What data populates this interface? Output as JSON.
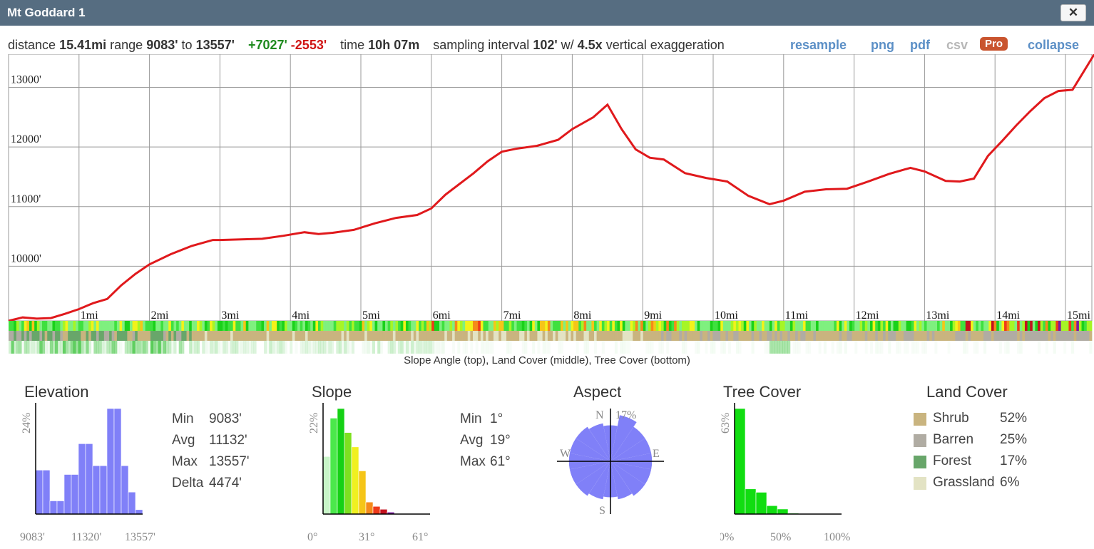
{
  "window": {
    "title": "Mt Goddard 1",
    "close_glyph": "✕"
  },
  "stats": {
    "distance_label": "distance",
    "distance": "15.41mi",
    "range_label": "range",
    "range_min": "9083'",
    "range_to": "to",
    "range_max": "13557'",
    "gain": "+7027'",
    "loss": "-2553'",
    "time_label": "time",
    "time": "10h 07m",
    "sampling_label": "sampling interval",
    "sampling": "102'",
    "w_label": "w/",
    "exaggeration": "4.5x",
    "exaggeration_label": "vertical exaggeration"
  },
  "actions": {
    "resample": "resample",
    "png": "png",
    "pdf": "pdf",
    "csv": "csv",
    "pro": "Pro",
    "collapse": "collapse"
  },
  "profile": {
    "caption": "Slope Angle (top), Land Cover (middle), Tree Cover (bottom)",
    "elevation_labels": [
      "13000'",
      "12000'",
      "11000'",
      "10000'"
    ],
    "mile_labels": [
      "1mi",
      "2mi",
      "3mi",
      "4mi",
      "5mi",
      "6mi",
      "7mi",
      "8mi",
      "9mi",
      "10mi",
      "11mi",
      "12mi",
      "13mi",
      "14mi",
      "15mi"
    ]
  },
  "elevation": {
    "title": "Elevation",
    "ymax_label": "24%",
    "xticks": [
      "9083'",
      "11320'",
      "13557'"
    ],
    "min_label": "Min",
    "min": "9083'",
    "avg_label": "Avg",
    "avg": "11132'",
    "max_label": "Max",
    "max": "13557'",
    "delta_label": "Delta",
    "delta": "4474'"
  },
  "slope": {
    "title": "Slope",
    "ymax_label": "22%",
    "xticks": [
      "0°",
      "31°",
      "61°"
    ],
    "min_label": "Min",
    "min": "1°",
    "avg_label": "Avg",
    "avg": "19°",
    "max_label": "Max",
    "max": "61°"
  },
  "aspect": {
    "title": "Aspect",
    "n": "N",
    "s": "S",
    "e": "E",
    "w": "W",
    "max_label": "17%"
  },
  "tree_cover": {
    "title": "Tree Cover",
    "ymax_label": "63%",
    "xticks": [
      "0%",
      "50%",
      "100%"
    ]
  },
  "land_cover": {
    "title": "Land Cover",
    "items": [
      {
        "label": "Shrub",
        "value": "52%",
        "color": "#c9b47f"
      },
      {
        "label": "Barren",
        "value": "25%",
        "color": "#b0aca3"
      },
      {
        "label": "Forest",
        "value": "17%",
        "color": "#68a66a"
      },
      {
        "label": "Grassland",
        "value": "6%",
        "color": "#e3e3c4"
      }
    ]
  },
  "colors": {
    "profile_line": "#e0191c",
    "elevation_bars": "#8080f8",
    "aspect_fill": "#8080f8",
    "tree_bars": "#11dd11"
  },
  "chart_data": [
    {
      "type": "line",
      "title": "",
      "xlabel": "",
      "ylabel": "",
      "x_unit": "mi",
      "y_unit": "ft",
      "xlim": [
        0,
        15.41
      ],
      "ylim": [
        9083,
        13557
      ],
      "x": [
        0,
        0.2,
        0.4,
        0.6,
        0.8,
        1.0,
        1.2,
        1.4,
        1.6,
        1.8,
        2.0,
        2.3,
        2.6,
        2.9,
        3.0,
        3.3,
        3.6,
        3.9,
        4.2,
        4.4,
        4.6,
        4.9,
        5.2,
        5.5,
        5.8,
        6.0,
        6.2,
        6.4,
        6.6,
        6.8,
        7.0,
        7.2,
        7.5,
        7.8,
        8.0,
        8.3,
        8.5,
        8.7,
        8.9,
        9.1,
        9.3,
        9.6,
        9.9,
        10.2,
        10.5,
        10.8,
        11.0,
        11.3,
        11.6,
        11.9,
        12.2,
        12.5,
        12.8,
        13.0,
        13.3,
        13.5,
        13.7,
        13.9,
        14.1,
        14.3,
        14.5,
        14.7,
        14.9,
        15.1,
        15.41
      ],
      "y": [
        9083,
        9140,
        9120,
        9130,
        9200,
        9280,
        9380,
        9450,
        9680,
        9870,
        10030,
        10200,
        10340,
        10440,
        10440,
        10450,
        10460,
        10510,
        10570,
        10540,
        10560,
        10610,
        10720,
        10810,
        10860,
        10970,
        11200,
        11380,
        11560,
        11760,
        11920,
        11970,
        12020,
        12120,
        12300,
        12500,
        12710,
        12300,
        11960,
        11820,
        11790,
        11560,
        11480,
        11420,
        11180,
        11040,
        11100,
        11250,
        11290,
        11300,
        11420,
        11550,
        11650,
        11590,
        11430,
        11420,
        11470,
        11850,
        12100,
        12360,
        12600,
        12820,
        12940,
        12960,
        13557
      ]
    },
    {
      "type": "bar",
      "title": "Elevation",
      "categories": [
        "9083'-9381'",
        "9381'-9680'",
        "9680'-9978'",
        "9978'-10276'",
        "10276'-10574'",
        "10574'-10873'",
        "10873'-11171'",
        "11171'-11469'",
        "11469'-11767'",
        "11767'-12066'",
        "12066'-12364'",
        "12364'-12662'",
        "12662'-12960'",
        "12960'-13259'",
        "13259'-13557'"
      ],
      "values": [
        10,
        10,
        3,
        3,
        9,
        9,
        16,
        16,
        11,
        11,
        24,
        24,
        11,
        5,
        1
      ],
      "unit": "%",
      "ylim": [
        0,
        24
      ]
    },
    {
      "type": "bar",
      "title": "Slope",
      "categories": [
        "0-4°",
        "4-8°",
        "8-12°",
        "12-16°",
        "16-20°",
        "20-24°",
        "24-28°",
        "28-32°",
        "32-36°",
        "36-40°",
        "40-44°",
        "44-48°",
        "48-52°",
        "52-56°",
        "56-61°"
      ],
      "values": [
        12,
        20,
        22,
        17,
        14,
        9,
        2.5,
        1.6,
        1,
        0.4,
        0,
        0,
        0,
        0,
        0
      ],
      "unit": "%",
      "ylim": [
        0,
        22
      ]
    },
    {
      "type": "bar",
      "title": "Aspect",
      "categories": [
        "N",
        "NNE",
        "NE",
        "ENE",
        "E",
        "ESE",
        "SE",
        "SSE",
        "S",
        "SSW",
        "SW",
        "WSW",
        "W",
        "WNW",
        "NW",
        "NNW"
      ],
      "values": [
        13,
        17,
        15,
        15,
        15,
        15,
        15,
        14,
        13,
        14,
        15,
        15,
        15,
        15,
        15,
        14
      ],
      "unit": "%",
      "ylim": [
        0,
        17
      ]
    },
    {
      "type": "bar",
      "title": "Tree Cover",
      "categories": [
        "0-10%",
        "10-20%",
        "20-30%",
        "30-40%",
        "40-50%",
        "50-60%",
        "60-70%",
        "70-80%",
        "80-90%",
        "90-100%"
      ],
      "values": [
        63,
        15,
        13,
        5,
        3,
        0.5,
        0.3,
        0,
        0,
        0
      ],
      "unit": "%",
      "ylim": [
        0,
        63
      ]
    },
    {
      "type": "pie",
      "title": "Land Cover",
      "categories": [
        "Shrub",
        "Barren",
        "Forest",
        "Grassland"
      ],
      "values": [
        52,
        25,
        17,
        6
      ]
    }
  ]
}
